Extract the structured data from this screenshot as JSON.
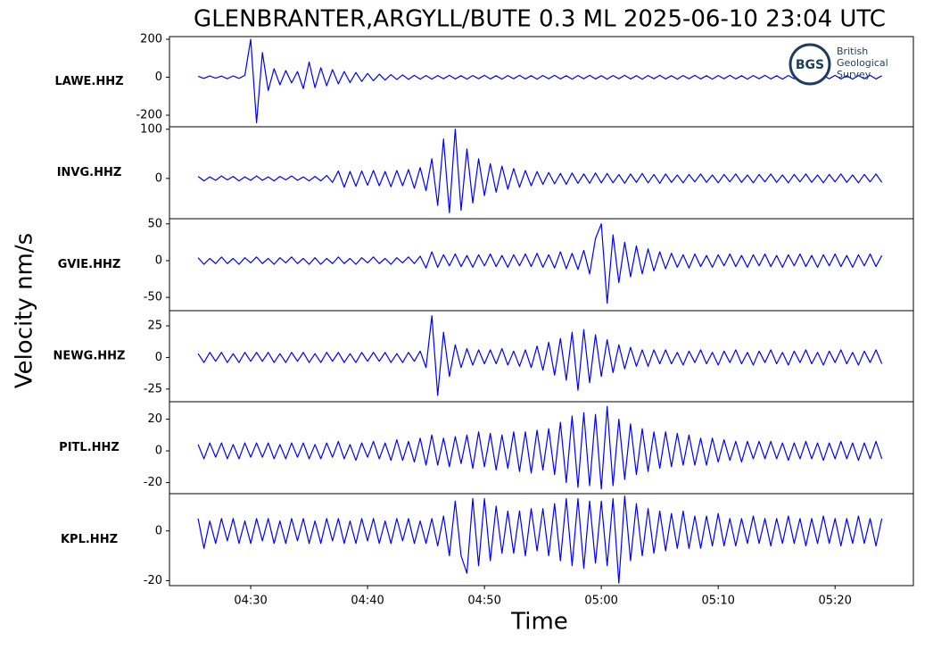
{
  "title": "GLENBRANTER,ARGYLL/BUTE 0.3 ML   2025-06-10 23:04 UTC",
  "ylabel": "Velocity nm/s",
  "logo": {
    "mark": "BGS",
    "lines": [
      "British",
      "Geological",
      "Survey"
    ]
  },
  "chart_data": {
    "type": "line",
    "xlabel": "Time",
    "xlim": [
      23.05,
      86.7
    ],
    "xticks": [
      {
        "value": 30,
        "label": "04:30"
      },
      {
        "value": 40,
        "label": "04:40"
      },
      {
        "value": 50,
        "label": "04:50"
      },
      {
        "value": 60,
        "label": "05:00"
      },
      {
        "value": 70,
        "label": "05:10"
      },
      {
        "value": 80,
        "label": "05:20"
      }
    ],
    "x": [
      25.5,
      26,
      26.5,
      27,
      27.5,
      28,
      28.5,
      29,
      29.5,
      30,
      30.5,
      31,
      31.5,
      32,
      32.5,
      33,
      33.5,
      34,
      34.5,
      35,
      35.5,
      36,
      36.5,
      37,
      37.5,
      38,
      38.5,
      39,
      39.5,
      40,
      40.5,
      41,
      41.5,
      42,
      42.5,
      43,
      43.5,
      44,
      44.5,
      45,
      45.5,
      46,
      46.5,
      47,
      47.5,
      48,
      48.5,
      49,
      49.5,
      50,
      50.5,
      51,
      51.5,
      52,
      52.5,
      53,
      53.5,
      54,
      54.5,
      55,
      55.5,
      56,
      56.5,
      57,
      57.5,
      58,
      58.5,
      59,
      59.5,
      60,
      60.5,
      61,
      61.5,
      62,
      62.5,
      63,
      63.5,
      64,
      64.5,
      65,
      65.5,
      66,
      66.5,
      67,
      67.5,
      68,
      68.5,
      69,
      69.5,
      70,
      70.5,
      71,
      71.5,
      72,
      72.5,
      73,
      73.5,
      74,
      74.5,
      75,
      75.5,
      76,
      76.5,
      77,
      77.5,
      78,
      78.5,
      79,
      79.5,
      80,
      80.5,
      81,
      81.5,
      82,
      82.5,
      83,
      83.5,
      84
    ],
    "series": [
      {
        "name": "LAWE.HHZ",
        "color": "#0000ff",
        "ylim": [
          -261,
          214
        ],
        "yticks": [
          200,
          0,
          -200
        ],
        "values": [
          5,
          -6,
          7,
          -5,
          6,
          -8,
          7,
          -6,
          10,
          200,
          -240,
          130,
          -70,
          45,
          -40,
          35,
          -30,
          30,
          -60,
          80,
          -55,
          50,
          -45,
          40,
          -35,
          30,
          -28,
          25,
          -22,
          20,
          -18,
          16,
          -15,
          14,
          -12,
          12,
          -11,
          10,
          -10,
          9,
          -10,
          9,
          -8,
          10,
          -9,
          8,
          -10,
          9,
          -8,
          10,
          -9,
          8,
          -10,
          9,
          -8,
          10,
          -9,
          8,
          -10,
          9,
          -8,
          10,
          -9,
          8,
          -10,
          9,
          -8,
          10,
          -9,
          8,
          -10,
          9,
          -8,
          10,
          -9,
          8,
          -10,
          9,
          -8,
          10,
          -9,
          8,
          -10,
          9,
          -8,
          10,
          -9,
          8,
          -10,
          9,
          -8,
          10,
          -9,
          8,
          -10,
          9,
          -8,
          10,
          -9,
          8,
          -10,
          9,
          -8,
          10,
          -9,
          8,
          -10,
          9,
          -8,
          10,
          -9,
          8,
          -10,
          9,
          -8,
          10,
          -9,
          8
        ]
      },
      {
        "name": "INVG.HHZ",
        "color": "#0000ff",
        "ylim": [
          -82,
          105
        ],
        "yticks": [
          100,
          0
        ],
        "values": [
          4,
          -5,
          3,
          -4,
          5,
          -3,
          4,
          -5,
          3,
          -4,
          5,
          -4,
          3,
          -5,
          4,
          -3,
          5,
          -4,
          3,
          -5,
          4,
          -5,
          6,
          -8,
          15,
          -18,
          14,
          -16,
          15,
          -14,
          16,
          -15,
          14,
          -17,
          16,
          -15,
          18,
          -20,
          22,
          -25,
          40,
          -55,
          80,
          -70,
          100,
          -65,
          60,
          -50,
          40,
          -35,
          30,
          -28,
          25,
          -22,
          20,
          -18,
          16,
          -15,
          14,
          -12,
          12,
          -11,
          10,
          -12,
          11,
          -10,
          9,
          -10,
          11,
          -9,
          10,
          -9,
          8,
          -10,
          9,
          -8,
          10,
          -9,
          8,
          -10,
          9,
          -8,
          7,
          -9,
          8,
          -7,
          9,
          -8,
          7,
          -9,
          8,
          -7,
          9,
          -8,
          7,
          -9,
          8,
          -7,
          9,
          -8,
          7,
          -9,
          8,
          -7,
          9,
          -8,
          7,
          -9,
          8,
          -7,
          9,
          -8,
          7,
          -9,
          8,
          -7,
          9,
          -8
        ]
      },
      {
        "name": "GVIE.HHZ",
        "color": "#0000ff",
        "ylim": [
          -68,
          57
        ],
        "yticks": [
          50,
          0,
          -50
        ],
        "values": [
          4,
          -5,
          3,
          -4,
          5,
          -4,
          3,
          -5,
          4,
          -3,
          5,
          -4,
          3,
          -5,
          4,
          -3,
          5,
          -4,
          3,
          -5,
          4,
          -5,
          3,
          -4,
          5,
          -4,
          3,
          -5,
          4,
          -3,
          5,
          -4,
          3,
          -5,
          4,
          -3,
          5,
          -4,
          6,
          -10,
          12,
          -9,
          8,
          -7,
          9,
          -8,
          7,
          -9,
          8,
          -7,
          9,
          -8,
          7,
          -9,
          8,
          -7,
          9,
          -8,
          10,
          -9,
          8,
          -10,
          12,
          -11,
          10,
          -12,
          14,
          -18,
          30,
          50,
          -58,
          35,
          -30,
          25,
          -22,
          20,
          -18,
          16,
          -14,
          12,
          -11,
          10,
          -9,
          8,
          -10,
          9,
          -8,
          7,
          -9,
          8,
          -7,
          9,
          -8,
          7,
          -9,
          8,
          -7,
          9,
          -8,
          7,
          -9,
          8,
          -7,
          9,
          -8,
          7,
          -9,
          8,
          -7,
          9,
          -8,
          7,
          -9,
          8,
          -7,
          9,
          -8,
          7
        ]
      },
      {
        "name": "NEWG.HHZ",
        "color": "#0000ff",
        "ylim": [
          -35,
          37
        ],
        "yticks": [
          25,
          0,
          -25
        ],
        "values": [
          3,
          -4,
          4,
          -3,
          4,
          -4,
          3,
          -4,
          4,
          -3,
          4,
          -3,
          4,
          -4,
          3,
          -4,
          4,
          -3,
          4,
          -4,
          3,
          -4,
          4,
          -3,
          4,
          -4,
          3,
          -4,
          4,
          -3,
          4,
          -3,
          4,
          -4,
          3,
          -4,
          4,
          -3,
          5,
          -8,
          33,
          -30,
          20,
          -15,
          10,
          -8,
          7,
          -6,
          6,
          -5,
          6,
          -5,
          7,
          -6,
          5,
          -7,
          6,
          -8,
          9,
          -10,
          12,
          -14,
          15,
          -18,
          20,
          -26,
          22,
          -20,
          18,
          -15,
          14,
          -12,
          10,
          -9,
          8,
          -7,
          6,
          -7,
          6,
          -5,
          6,
          -5,
          4,
          -6,
          5,
          -4,
          6,
          -5,
          4,
          -6,
          5,
          -4,
          6,
          -5,
          4,
          -6,
          5,
          -4,
          6,
          -5,
          4,
          -6,
          5,
          -4,
          6,
          -5,
          4,
          -6,
          5,
          -4,
          6,
          -5,
          4,
          -6,
          5,
          -4,
          6,
          -5
        ]
      },
      {
        "name": "PITL.HHZ",
        "color": "#0000ff",
        "ylim": [
          -27,
          31
        ],
        "yticks": [
          20,
          0,
          -20
        ],
        "values": [
          4,
          -5,
          5,
          -4,
          5,
          -5,
          4,
          -5,
          5,
          -4,
          5,
          -4,
          5,
          -5,
          4,
          -5,
          5,
          -4,
          5,
          -5,
          4,
          -5,
          5,
          -4,
          6,
          -5,
          4,
          -6,
          5,
          -4,
          6,
          -5,
          5,
          -6,
          7,
          -6,
          6,
          -7,
          8,
          -9,
          10,
          -9,
          8,
          -10,
          9,
          -8,
          10,
          -11,
          12,
          -10,
          11,
          -12,
          10,
          -11,
          12,
          -13,
          12,
          -14,
          13,
          -12,
          14,
          -15,
          18,
          -20,
          22,
          -23,
          24,
          -22,
          23,
          -24,
          28,
          -22,
          20,
          -18,
          17,
          -15,
          14,
          -13,
          12,
          -11,
          12,
          -10,
          11,
          -9,
          10,
          -9,
          8,
          -9,
          8,
          -7,
          7,
          -6,
          6,
          -7,
          6,
          -5,
          6,
          -5,
          6,
          -5,
          5,
          -6,
          5,
          -5,
          6,
          -5,
          5,
          -6,
          5,
          -5,
          6,
          -5,
          5,
          -6,
          5,
          -5,
          6,
          -5
        ]
      },
      {
        "name": "KPL.HHZ",
        "color": "#0000ff",
        "ylim": [
          -22,
          15
        ],
        "yticks": [
          0,
          -20
        ],
        "values": [
          5,
          -7,
          4,
          -5,
          5,
          -4,
          5,
          -5,
          4,
          -5,
          5,
          -4,
          5,
          -5,
          4,
          -5,
          5,
          -4,
          5,
          -5,
          4,
          -5,
          5,
          -4,
          5,
          -5,
          4,
          -5,
          5,
          -4,
          5,
          -5,
          4,
          -5,
          5,
          -4,
          5,
          -5,
          4,
          -5,
          5,
          -6,
          6,
          -10,
          12,
          -10,
          -17,
          13,
          -14,
          13,
          -12,
          10,
          -9,
          8,
          -9,
          8,
          -10,
          9,
          -8,
          9,
          -10,
          11,
          -12,
          13,
          -14,
          13,
          -15,
          12,
          -13,
          12,
          -14,
          13,
          -21,
          14,
          -12,
          11,
          -10,
          9,
          -9,
          8,
          -8,
          7,
          -7,
          8,
          -7,
          6,
          -7,
          6,
          -6,
          7,
          -6,
          5,
          -6,
          5,
          -5,
          6,
          -5,
          5,
          -6,
          5,
          -5,
          6,
          -5,
          5,
          -6,
          5,
          -5,
          6,
          -5,
          5,
          -6,
          5,
          -5,
          6,
          -5,
          5,
          -6,
          5
        ]
      }
    ]
  }
}
